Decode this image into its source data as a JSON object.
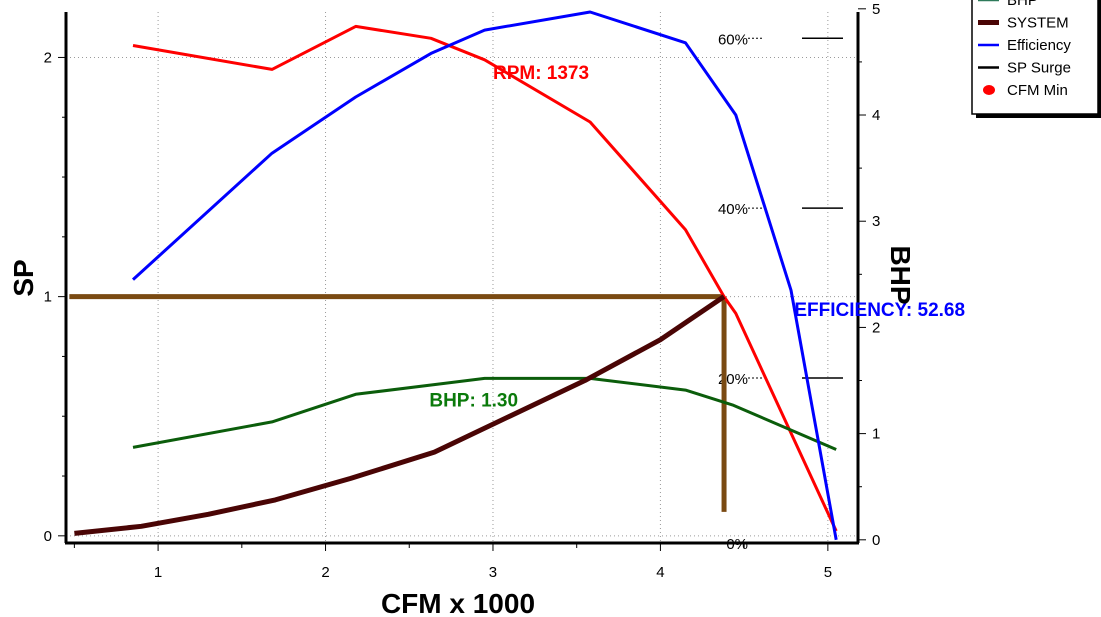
{
  "chart_data": {
    "type": "line",
    "xlabel": "CFM x 1000",
    "ylabel": "SP",
    "y2label": "BHP",
    "xlim": [
      0.45,
      5.18
    ],
    "ylim": [
      -0.03,
      2.19
    ],
    "y2lim": [
      -0.03,
      4.97
    ],
    "x_ticks": [
      "1",
      "2",
      "3",
      "4",
      "5"
    ],
    "y_ticks": [
      "0",
      "1",
      "2"
    ],
    "y2_ticks": [
      "0",
      "1",
      "2",
      "3",
      "4",
      "5"
    ],
    "grid": "dotted",
    "legend_placement": "top-right (partially clipped)",
    "series": [
      {
        "name": "RPM",
        "axis": "left",
        "color": "#ff0000",
        "width": 3,
        "x": [
          0.85,
          1.68,
          2.18,
          2.63,
          2.95,
          3.58,
          4.15,
          4.38,
          4.45,
          5.05
        ],
        "y": [
          2.05,
          1.95,
          2.13,
          2.08,
          1.99,
          1.73,
          1.28,
          1.0,
          0.93,
          0.02
        ]
      },
      {
        "name": "BHP",
        "axis": "right",
        "color": "#0b5d0b",
        "width": 3,
        "x": [
          0.85,
          1.68,
          2.18,
          2.95,
          3.58,
          4.15,
          4.43,
          5.05
        ],
        "y": [
          0.87,
          1.11,
          1.37,
          1.52,
          1.52,
          1.41,
          1.27,
          0.85
        ]
      },
      {
        "name": "SYSTEM",
        "axis": "left",
        "color": "#4a0505",
        "width": 5,
        "x": [
          0.5,
          0.9,
          1.3,
          1.7,
          2.15,
          2.65,
          3.1,
          3.55,
          4.0,
          4.38
        ],
        "y": [
          0.01,
          0.04,
          0.09,
          0.15,
          0.24,
          0.35,
          0.5,
          0.65,
          0.82,
          1.0
        ]
      },
      {
        "name": "Efficiency",
        "axis": "right",
        "color": "#0000ff",
        "width": 3,
        "x": [
          0.85,
          1.68,
          2.18,
          2.63,
          2.95,
          3.58,
          4.15,
          4.45,
          4.78,
          5.05
        ],
        "y": [
          2.45,
          3.64,
          4.17,
          4.58,
          4.8,
          4.97,
          4.68,
          4.0,
          2.35,
          0.0
        ]
      }
    ],
    "operating_point": {
      "x": 4.38,
      "y": 1.0,
      "color": "#7a4a12",
      "marker_y_range": [
        0.1,
        1.0
      ]
    },
    "efficiency_scale": [
      {
        "label": "60%",
        "y": 2.08
      },
      {
        "label": "40%",
        "y": 1.37
      },
      {
        "label": "20%",
        "y": 0.66
      },
      {
        "label": "0%",
        "y": -0.03
      }
    ],
    "annotations": [
      {
        "text": "RPM: 1373",
        "x": 3.0,
        "y": 1.91,
        "color": "#ff0000"
      },
      {
        "text": "BHP: 1.30",
        "x": 2.62,
        "y": 0.54,
        "color": "#0b7a0b"
      },
      {
        "text": "EFFICIENCY: 52.68",
        "x": 4.8,
        "y": 0.92,
        "color": "#0000ff"
      }
    ],
    "legend": [
      {
        "label": "BHP",
        "symbol": "line",
        "color": "#2e7a5a"
      },
      {
        "label": "SYSTEM",
        "symbol": "thick-line",
        "color": "#4a0505"
      },
      {
        "label": "Efficiency",
        "symbol": "line",
        "color": "#0000ff"
      },
      {
        "label": "SP Surge",
        "symbol": "line",
        "color": "#000000"
      },
      {
        "label": "CFM Min",
        "symbol": "dot",
        "color": "#ff0000"
      }
    ]
  }
}
